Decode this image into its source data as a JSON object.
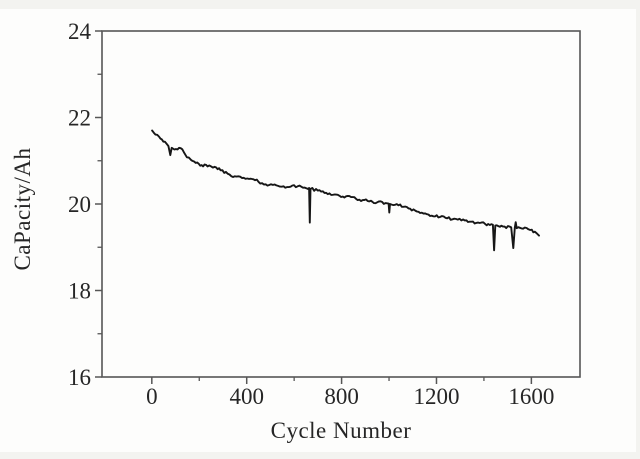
{
  "figure": {
    "background": "#fdfdfc"
  },
  "chart_data": {
    "type": "line",
    "title": "",
    "xlabel": "Cycle Number",
    "ylabel": "CaPacity/Ah",
    "xlim": [
      -210,
      1805
    ],
    "ylim": [
      16,
      24
    ],
    "x_major_ticks": [
      0,
      400,
      800,
      1200,
      1600
    ],
    "x_minor_ticks": [
      200,
      600,
      1000,
      1400
    ],
    "y_major_ticks": [
      16,
      18,
      20,
      22,
      24
    ],
    "y_minor_ticks": [
      17,
      19,
      21,
      23
    ],
    "grid": false,
    "legend_position": "none",
    "line_color": "#161616",
    "axis_color": "#565656",
    "text_color": "#262626",
    "noise_amplitude": 0.032,
    "series": [
      {
        "name": "capacity",
        "points": [
          [
            1,
            21.7
          ],
          [
            30,
            21.56
          ],
          [
            55,
            21.44
          ],
          [
            70,
            21.34
          ],
          [
            78,
            21.13
          ],
          [
            84,
            21.3
          ],
          [
            95,
            21.26
          ],
          [
            115,
            21.3
          ],
          [
            135,
            21.2
          ],
          [
            148,
            21.08
          ],
          [
            165,
            21.02
          ],
          [
            185,
            20.95
          ],
          [
            210,
            20.9
          ],
          [
            235,
            20.87
          ],
          [
            265,
            20.86
          ],
          [
            290,
            20.78
          ],
          [
            320,
            20.7
          ],
          [
            350,
            20.64
          ],
          [
            380,
            20.6
          ],
          [
            410,
            20.58
          ],
          [
            435,
            20.55
          ],
          [
            465,
            20.48
          ],
          [
            495,
            20.44
          ],
          [
            525,
            20.43
          ],
          [
            555,
            20.41
          ],
          [
            585,
            20.4
          ],
          [
            615,
            20.41
          ],
          [
            645,
            20.38
          ],
          [
            663,
            20.37
          ],
          [
            666,
            19.57
          ],
          [
            669,
            20.35
          ],
          [
            700,
            20.31
          ],
          [
            735,
            20.26
          ],
          [
            770,
            20.22
          ],
          [
            805,
            20.17
          ],
          [
            840,
            20.16
          ],
          [
            875,
            20.1
          ],
          [
            910,
            20.07
          ],
          [
            950,
            20.04
          ],
          [
            985,
            20.02
          ],
          [
            998,
            20.01
          ],
          [
            1001,
            19.8
          ],
          [
            1004,
            20.0
          ],
          [
            1040,
            19.97
          ],
          [
            1075,
            19.93
          ],
          [
            1110,
            19.85
          ],
          [
            1145,
            19.78
          ],
          [
            1180,
            19.73
          ],
          [
            1215,
            19.7
          ],
          [
            1245,
            19.67
          ],
          [
            1275,
            19.66
          ],
          [
            1305,
            19.62
          ],
          [
            1340,
            19.59
          ],
          [
            1375,
            19.57
          ],
          [
            1405,
            19.54
          ],
          [
            1438,
            19.52
          ],
          [
            1443,
            18.93
          ],
          [
            1448,
            19.5
          ],
          [
            1480,
            19.48
          ],
          [
            1515,
            19.46
          ],
          [
            1524,
            18.98
          ],
          [
            1530,
            19.45
          ],
          [
            1534,
            19.58
          ],
          [
            1538,
            19.44
          ],
          [
            1565,
            19.43
          ],
          [
            1595,
            19.4
          ],
          [
            1615,
            19.36
          ],
          [
            1632,
            19.27
          ]
        ]
      }
    ]
  }
}
